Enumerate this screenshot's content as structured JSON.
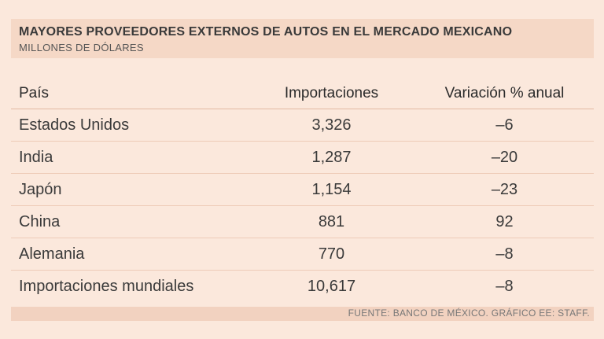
{
  "header": {
    "title": "MAYORES PROVEEDORES EXTERNOS DE AUTOS EN EL MERCADO MEXICANO",
    "subtitle": "MILLONES DE DÓLARES"
  },
  "table": {
    "columns": [
      "País",
      "Importaciones",
      "Variación % anual"
    ],
    "rows": [
      {
        "pais": "Estados Unidos",
        "importaciones": "3,326",
        "variacion": "–6"
      },
      {
        "pais": "India",
        "importaciones": "1,287",
        "variacion": "–20"
      },
      {
        "pais": "Japón",
        "importaciones": "1,154",
        "variacion": "–23"
      },
      {
        "pais": "China",
        "importaciones": "881",
        "variacion": "92"
      },
      {
        "pais": "Alemania",
        "importaciones": "770",
        "variacion": "–8"
      },
      {
        "pais": "Importaciones mundiales",
        "importaciones": "10,617",
        "variacion": "–8"
      }
    ]
  },
  "footer": {
    "source": "FUENTE: BANCO DE MÉXICO. GRÁFICO EE: STAFF."
  },
  "colors": {
    "background": "#fbe8dc",
    "header_band": "#f5d8c6",
    "text": "#3a3a3a"
  }
}
